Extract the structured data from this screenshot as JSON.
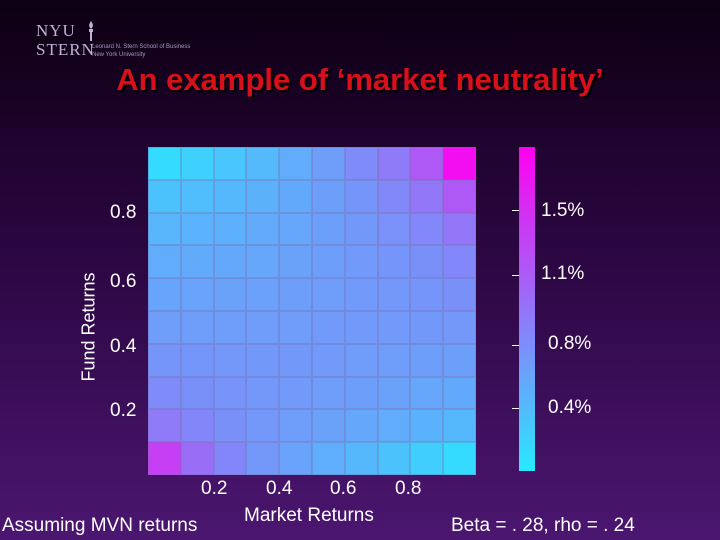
{
  "logo": {
    "line1": "NYU",
    "line2": "STERN",
    "sub1": "Leonard N. Stern School of Business",
    "sub2": "New York University"
  },
  "title": "An example of ‘market neutrality’",
  "notes": {
    "left": "Assuming MVN returns",
    "right": "Beta = . 28, rho = . 24"
  },
  "colors": {
    "low": "#29e8ff",
    "high": "#ff00f0",
    "title": "#d8101a"
  },
  "chart_data": {
    "type": "heatmap",
    "xlabel": "Market Returns",
    "ylabel": "Fund Returns",
    "x_ticks": [
      "0.2",
      "0.4",
      "0.6",
      "0.8"
    ],
    "y_ticks": [
      "0.2",
      "0.4",
      "0.6",
      "0.8"
    ],
    "xlim": [
      0,
      1
    ],
    "ylim": [
      0,
      1
    ],
    "colorbar_ticks": [
      "0.4%",
      "0.8%",
      "1.1%",
      "1.5%"
    ],
    "colorbar_range": [
      0,
      1.85
    ],
    "grid_size": [
      10,
      10
    ],
    "values_rows_top_to_bottom": [
      [
        0.1,
        0.18,
        0.27,
        0.37,
        0.48,
        0.6,
        0.74,
        0.88,
        1.15,
        1.75
      ],
      [
        0.3,
        0.34,
        0.38,
        0.44,
        0.5,
        0.58,
        0.66,
        0.76,
        0.9,
        1.15
      ],
      [
        0.4,
        0.42,
        0.45,
        0.49,
        0.53,
        0.58,
        0.63,
        0.69,
        0.77,
        0.9
      ],
      [
        0.48,
        0.49,
        0.51,
        0.53,
        0.56,
        0.59,
        0.62,
        0.66,
        0.7,
        0.77
      ],
      [
        0.54,
        0.55,
        0.56,
        0.57,
        0.59,
        0.6,
        0.62,
        0.64,
        0.66,
        0.7
      ],
      [
        0.6,
        0.6,
        0.6,
        0.61,
        0.61,
        0.62,
        0.62,
        0.62,
        0.63,
        0.64
      ],
      [
        0.66,
        0.65,
        0.64,
        0.63,
        0.63,
        0.62,
        0.61,
        0.6,
        0.59,
        0.58
      ],
      [
        0.74,
        0.7,
        0.67,
        0.64,
        0.62,
        0.6,
        0.58,
        0.56,
        0.53,
        0.5
      ],
      [
        0.88,
        0.78,
        0.7,
        0.64,
        0.6,
        0.56,
        0.52,
        0.48,
        0.43,
        0.38
      ],
      [
        1.35,
        0.98,
        0.78,
        0.64,
        0.55,
        0.46,
        0.38,
        0.3,
        0.2,
        0.1
      ]
    ]
  }
}
